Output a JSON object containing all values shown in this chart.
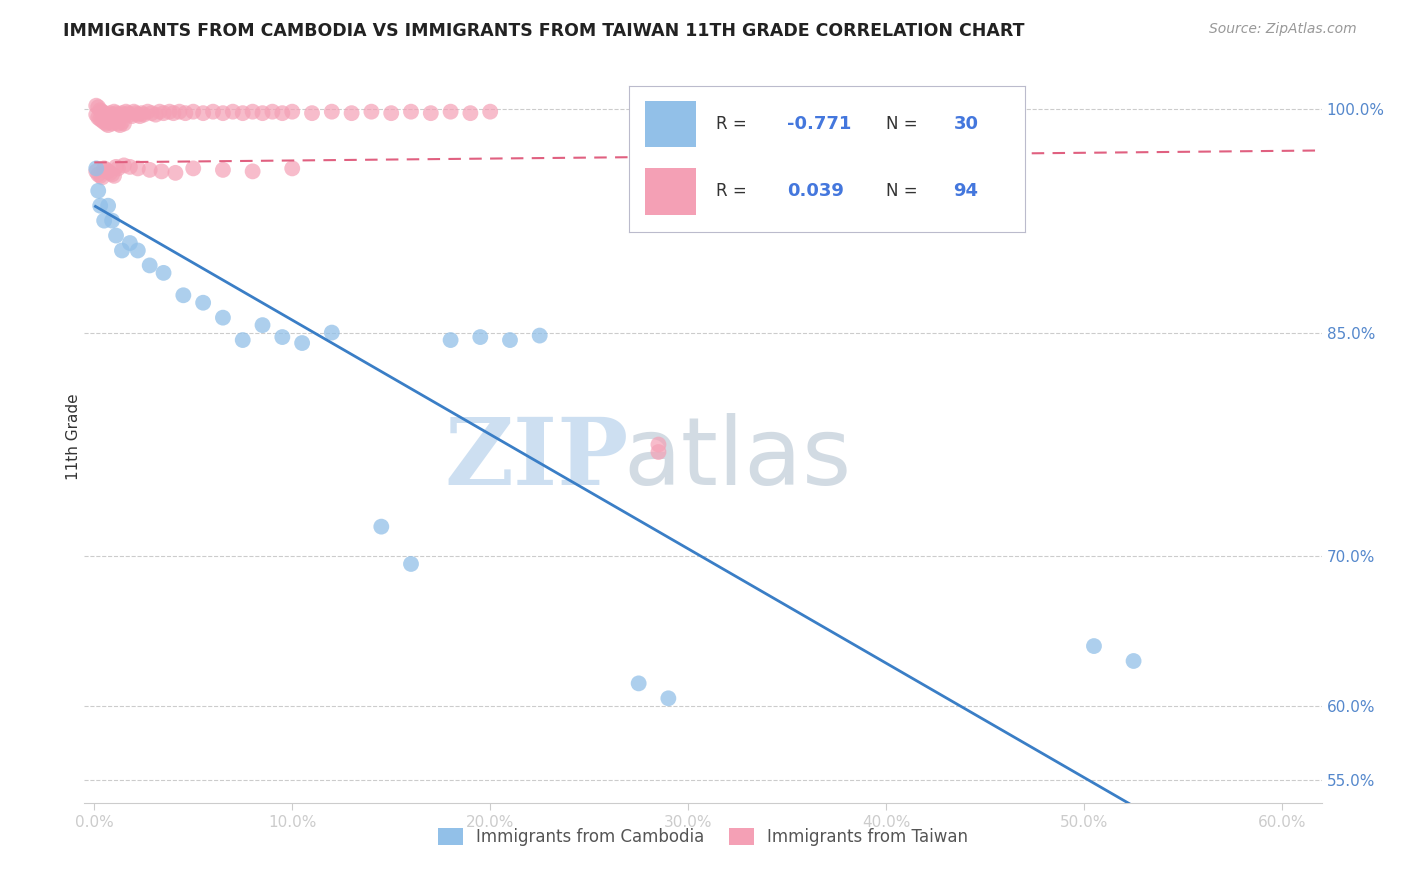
{
  "title": "IMMIGRANTS FROM CAMBODIA VS IMMIGRANTS FROM TAIWAN 11TH GRADE CORRELATION CHART",
  "source": "Source: ZipAtlas.com",
  "ylabel": "11th Grade",
  "legend_r_cambodia": "-0.771",
  "legend_n_cambodia": "30",
  "legend_r_taiwan": "0.039",
  "legend_n_taiwan": "94",
  "color_cambodia": "#92C0E8",
  "color_taiwan": "#F4A0B5",
  "color_line_cambodia": "#3A7EC6",
  "color_line_taiwan": "#E06080",
  "background_color": "#FFFFFF",
  "xticks": [
    0.0,
    0.1,
    0.2,
    0.3,
    0.4,
    0.5,
    0.6
  ],
  "xtick_labels": [
    "0.0%",
    "10.0%",
    "20.0%",
    "30.0%",
    "40.0%",
    "50.0%",
    "60.0%"
  ],
  "yticks": [
    0.55,
    0.6,
    0.7,
    0.85,
    1.0
  ],
  "ytick_labels": [
    "55.0%",
    "60.0%",
    "70.0%",
    "85.0%",
    "100.0%"
  ],
  "xlim": [
    -0.005,
    0.62
  ],
  "ylim": [
    0.535,
    1.025
  ],
  "watermark_zip_color": "#C8DCF0",
  "watermark_atlas_color": "#C0C8D8",
  "legend_box_color": "#AAAACC",
  "text_color_dark": "#333333",
  "text_color_blue": "#4477DD",
  "cambodia_x": [
    0.001,
    0.002,
    0.003,
    0.005,
    0.007,
    0.009,
    0.011,
    0.014,
    0.018,
    0.022,
    0.028,
    0.035,
    0.045,
    0.055,
    0.065,
    0.075,
    0.085,
    0.095,
    0.105,
    0.12,
    0.145,
    0.16,
    0.18,
    0.195,
    0.21,
    0.225,
    0.275,
    0.29,
    0.505,
    0.525
  ],
  "cambodia_y": [
    0.96,
    0.945,
    0.935,
    0.925,
    0.935,
    0.925,
    0.915,
    0.905,
    0.91,
    0.905,
    0.895,
    0.89,
    0.875,
    0.87,
    0.86,
    0.845,
    0.855,
    0.847,
    0.843,
    0.85,
    0.72,
    0.695,
    0.845,
    0.847,
    0.845,
    0.848,
    0.615,
    0.605,
    0.64,
    0.63
  ],
  "taiwan_x": [
    0.001,
    0.001,
    0.002,
    0.002,
    0.003,
    0.003,
    0.004,
    0.004,
    0.005,
    0.005,
    0.006,
    0.006,
    0.007,
    0.007,
    0.008,
    0.008,
    0.009,
    0.009,
    0.01,
    0.01,
    0.011,
    0.011,
    0.012,
    0.012,
    0.013,
    0.013,
    0.014,
    0.014,
    0.015,
    0.015,
    0.016,
    0.017,
    0.018,
    0.019,
    0.02,
    0.021,
    0.022,
    0.023,
    0.024,
    0.025,
    0.027,
    0.029,
    0.031,
    0.033,
    0.035,
    0.038,
    0.04,
    0.043,
    0.046,
    0.05,
    0.055,
    0.06,
    0.065,
    0.07,
    0.075,
    0.08,
    0.085,
    0.09,
    0.095,
    0.1,
    0.11,
    0.12,
    0.13,
    0.14,
    0.15,
    0.16,
    0.17,
    0.18,
    0.19,
    0.2,
    0.001,
    0.002,
    0.003,
    0.004,
    0.005,
    0.006,
    0.007,
    0.008,
    0.009,
    0.01,
    0.011,
    0.012,
    0.015,
    0.018,
    0.022,
    0.028,
    0.034,
    0.041,
    0.05,
    0.065,
    0.08,
    0.1,
    0.285,
    0.285
  ],
  "taiwan_y": [
    1.002,
    0.996,
    1.001,
    0.994,
    0.999,
    0.993,
    0.998,
    0.992,
    0.997,
    0.991,
    0.996,
    0.99,
    0.995,
    0.989,
    0.997,
    0.991,
    0.996,
    0.99,
    0.998,
    0.992,
    0.997,
    0.991,
    0.996,
    0.99,
    0.995,
    0.989,
    0.997,
    0.991,
    0.996,
    0.99,
    0.998,
    0.997,
    0.996,
    0.995,
    0.998,
    0.997,
    0.996,
    0.995,
    0.997,
    0.996,
    0.998,
    0.997,
    0.996,
    0.998,
    0.997,
    0.998,
    0.997,
    0.998,
    0.997,
    0.998,
    0.997,
    0.998,
    0.997,
    0.998,
    0.997,
    0.998,
    0.997,
    0.998,
    0.997,
    0.998,
    0.997,
    0.998,
    0.997,
    0.998,
    0.997,
    0.998,
    0.997,
    0.998,
    0.997,
    0.998,
    0.958,
    0.956,
    0.955,
    0.954,
    0.96,
    0.959,
    0.958,
    0.957,
    0.956,
    0.955,
    0.961,
    0.96,
    0.962,
    0.961,
    0.96,
    0.959,
    0.958,
    0.957,
    0.96,
    0.959,
    0.958,
    0.96,
    0.775,
    0.77
  ]
}
